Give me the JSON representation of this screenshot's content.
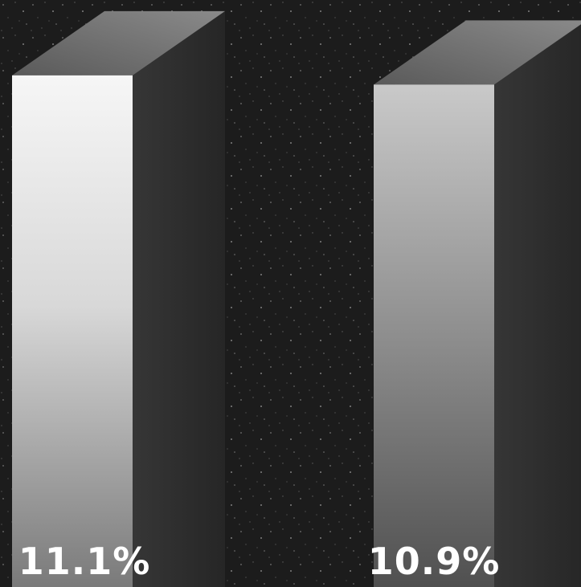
{
  "chart_data": {
    "type": "bar",
    "categories": [
      "",
      ""
    ],
    "values": [
      11.1,
      10.9
    ],
    "labels": [
      "11.1%",
      "10.9%"
    ],
    "unit": "%",
    "title": "",
    "xlabel": "",
    "ylabel": "",
    "style": "3d-bars",
    "colors": {
      "background": "#1c1c1c",
      "bar_front_top": "#f4f4f4",
      "bar_front_bottom": "#7e7e7e",
      "bar_side": "#2e2e2e",
      "bar_top": "#6f6f6f",
      "label": "#ffffff"
    }
  }
}
